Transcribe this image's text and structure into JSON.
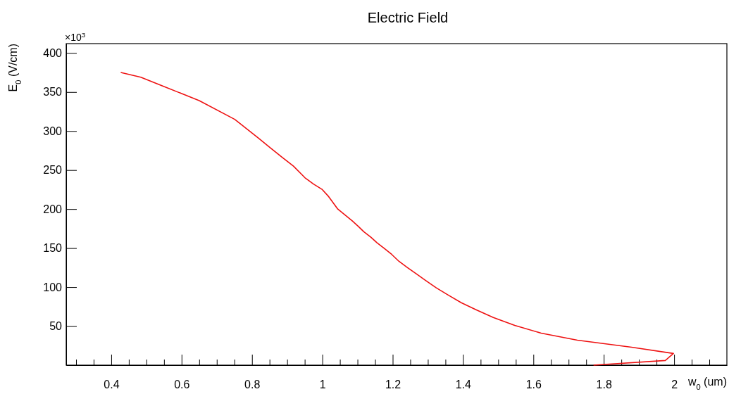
{
  "chart_data": {
    "type": "line",
    "title": "Electric Field",
    "xlabel": "w$_{0}$ (um)",
    "ylabel": "E$_{0}$ (V/cm)",
    "annotations": [
      "×10$^{3}$"
    ],
    "xlim": [
      0.272,
      2.15
    ],
    "ylim": [
      0,
      412
    ],
    "xticks": [
      {
        "value": 0.3,
        "label": null
      },
      {
        "value": 0.35,
        "label": null
      },
      0.4,
      {
        "value": 0.45,
        "label": null
      },
      {
        "value": 0.5,
        "label": null
      },
      {
        "value": 0.55,
        "label": null
      },
      0.6,
      {
        "value": 0.65,
        "label": null
      },
      {
        "value": 0.7,
        "label": null
      },
      {
        "value": 0.75,
        "label": null
      },
      0.8,
      {
        "value": 0.85,
        "label": null
      },
      {
        "value": 0.9,
        "label": null
      },
      {
        "value": 0.95,
        "label": null
      },
      1,
      {
        "value": 1.05,
        "label": null
      },
      {
        "value": 1.1,
        "label": null
      },
      {
        "value": 1.15,
        "label": null
      },
      1.2,
      {
        "value": 1.25,
        "label": null
      },
      {
        "value": 1.3,
        "label": null
      },
      {
        "value": 1.35,
        "label": null
      },
      1.4,
      {
        "value": 1.45,
        "label": null
      },
      {
        "value": 1.5,
        "label": null
      },
      {
        "value": 1.55,
        "label": null
      },
      1.6,
      {
        "value": 1.65,
        "label": null
      },
      {
        "value": 1.7,
        "label": null
      },
      {
        "value": 1.75,
        "label": null
      },
      1.8,
      {
        "value": 1.85,
        "label": null
      },
      {
        "value": 1.9,
        "label": null
      },
      {
        "value": 1.95,
        "label": null
      },
      2,
      {
        "value": 2.05,
        "label": null
      },
      {
        "value": 2.1,
        "label": null
      }
    ],
    "yticks": [
      50,
      100,
      150,
      200,
      250,
      300,
      350,
      400
    ],
    "line_style": "solid",
    "series": [
      {
        "color": "#ee1111",
        "x": [
          0.427,
          0.484,
          0.55,
          0.65,
          0.751,
          0.818,
          0.851,
          0.884,
          0.918,
          0.951,
          0.975,
          1.0,
          1.018,
          1.044,
          1.085,
          1.102,
          1.118,
          1.138,
          1.155,
          1.175,
          1.197,
          1.218,
          1.242,
          1.267,
          1.295,
          1.324,
          1.357,
          1.395,
          1.437,
          1.486,
          1.547,
          1.622,
          1.725,
          1.879,
          1.998,
          1.975,
          1.771
        ],
        "values": [
          375,
          369,
          357,
          339,
          315,
          291,
          279,
          267,
          255,
          240,
          232,
          225,
          216,
          200,
          185,
          178,
          171,
          164,
          157,
          150,
          142,
          133,
          125,
          117,
          108,
          99,
          90,
          80,
          71,
          61,
          51,
          41,
          32,
          23,
          15,
          6,
          0
        ]
      }
    ]
  }
}
